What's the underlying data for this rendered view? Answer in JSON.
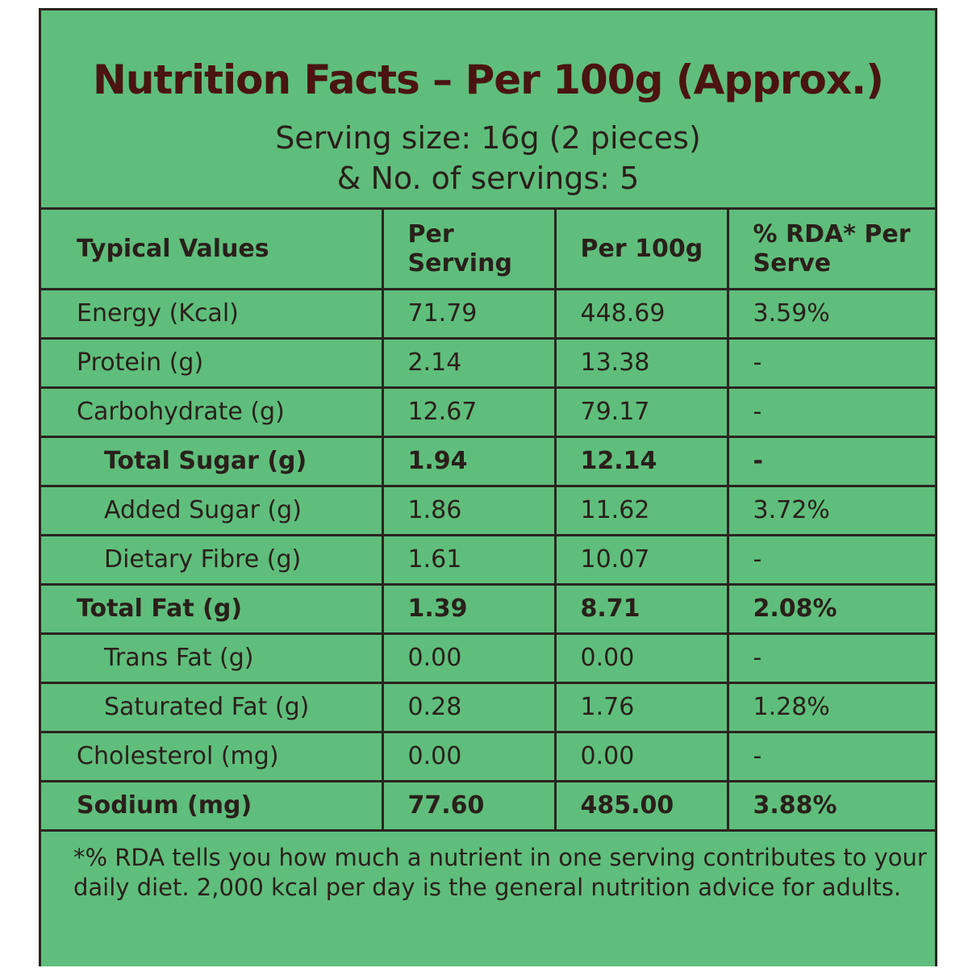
{
  "header": {
    "title": "Nutrition Facts – Per 100g (Approx.)",
    "serving_line1": "Serving size: 16g (2 pieces)",
    "serving_line2": "& No. of servings: 5"
  },
  "table": {
    "columns": [
      "Typical Values",
      "Per Serving",
      "Per 100g",
      "% RDA* Per Serve"
    ],
    "rows": [
      {
        "name": "Energy (Kcal)",
        "per_serving": "71.79",
        "per_100g": "448.69",
        "rda": "3.59%"
      },
      {
        "name": "Protein (g)",
        "per_serving": "2.14",
        "per_100g": "13.38",
        "rda": "-"
      },
      {
        "name": "Carbohydrate (g)",
        "per_serving": "12.67",
        "per_100g": "79.17",
        "rda": "-"
      },
      {
        "name": "Total Sugar (g)",
        "per_serving": "1.94",
        "per_100g": "12.14",
        "rda": "-"
      },
      {
        "name": "Added Sugar (g)",
        "per_serving": "1.86",
        "per_100g": "11.62",
        "rda": "3.72%"
      },
      {
        "name": "Dietary Fibre (g)",
        "per_serving": "1.61",
        "per_100g": "10.07",
        "rda": "-"
      },
      {
        "name": "Total Fat (g)",
        "per_serving": "1.39",
        "per_100g": "8.71",
        "rda": "2.08%"
      },
      {
        "name": "Trans Fat (g)",
        "per_serving": "0.00",
        "per_100g": "0.00",
        "rda": "-"
      },
      {
        "name": "Saturated Fat (g)",
        "per_serving": "0.28",
        "per_100g": "1.76",
        "rda": "1.28%"
      },
      {
        "name": "Cholesterol (mg)",
        "per_serving": "0.00",
        "per_100g": "0.00",
        "rda": "-"
      },
      {
        "name": "Sodium (mg)",
        "per_serving": "77.60",
        "per_100g": "485.00",
        "rda": "3.88%"
      }
    ]
  },
  "footnote": "*% RDA tells you how much a nutrient in one serving contributes to your daily diet. 2,000 kcal per day is the general nutrition advice for adults.",
  "colors": {
    "background": "#5fbe7c",
    "title": "#4a1410",
    "text": "#2a1f1a",
    "border": "#2a2420"
  }
}
